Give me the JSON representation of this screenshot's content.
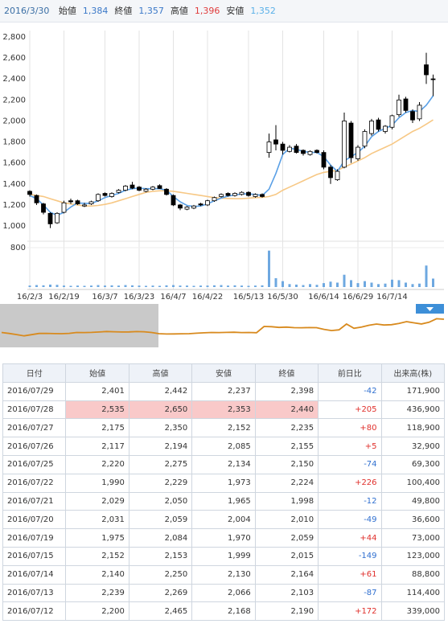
{
  "header": {
    "date": "2016/3/30",
    "items": [
      {
        "label": "始値",
        "value": "1,384",
        "color": "#3a78c8"
      },
      {
        "label": "終値",
        "value": "1,357",
        "color": "#3a78c8"
      },
      {
        "label": "高値",
        "value": "1,396",
        "color": "#e03c3c"
      },
      {
        "label": "安値",
        "value": "1,352",
        "color": "#5ab0e8"
      }
    ]
  },
  "chart_data": {
    "type": "candlestick",
    "categories": [
      "16/2/3",
      null,
      null,
      null,
      null,
      "16/2/19",
      null,
      null,
      null,
      null,
      null,
      "16/3/7",
      null,
      null,
      null,
      null,
      "16/3/23",
      null,
      null,
      null,
      null,
      "16/4/7",
      null,
      null,
      null,
      null,
      "16/4/22",
      null,
      null,
      null,
      null,
      null,
      "16/5/13",
      null,
      null,
      null,
      null,
      "16/5/30",
      null,
      null,
      null,
      null,
      null,
      "16/6/14",
      null,
      null,
      null,
      null,
      "16/6/29",
      null,
      null,
      null,
      null,
      "16/7/14",
      null,
      null,
      null,
      null,
      null,
      null
    ],
    "open": [
      1330,
      1290,
      1210,
      1120,
      1030,
      1130,
      1240,
      1240,
      1190,
      1210,
      1240,
      1310,
      1280,
      1320,
      1340,
      1390,
      1370,
      1330,
      1350,
      1384,
      1350,
      1290,
      1200,
      1160,
      1170,
      1210,
      1200,
      1240,
      1280,
      1310,
      1290,
      1300,
      1320,
      1280,
      1300,
      1700,
      1820,
      1780,
      1710,
      1760,
      1720,
      1680,
      1720,
      1700,
      1560,
      1440,
      1560,
      1980,
      1640,
      1760,
      1880,
      2010,
      1900,
      1940,
      2060,
      2210,
      2090,
      2020,
      2535,
      2401
    ],
    "high": [
      1340,
      1300,
      1220,
      1130,
      1130,
      1240,
      1260,
      1250,
      1220,
      1240,
      1310,
      1320,
      1320,
      1350,
      1390,
      1420,
      1380,
      1360,
      1380,
      1396,
      1360,
      1300,
      1210,
      1190,
      1200,
      1220,
      1250,
      1280,
      1310,
      1320,
      1320,
      1330,
      1330,
      1310,
      1310,
      1880,
      1960,
      1800,
      1770,
      1780,
      1730,
      1720,
      1730,
      1720,
      1580,
      1540,
      2080,
      2000,
      1770,
      1920,
      2020,
      2030,
      1960,
      2060,
      2250,
      2230,
      2110,
      2180,
      2650,
      2442
    ],
    "low": [
      1280,
      1200,
      1110,
      980,
      1020,
      1120,
      1210,
      1200,
      1180,
      1200,
      1230,
      1280,
      1270,
      1310,
      1330,
      1350,
      1330,
      1320,
      1340,
      1352,
      1290,
      1190,
      1150,
      1150,
      1160,
      1190,
      1190,
      1230,
      1270,
      1280,
      1280,
      1290,
      1280,
      1270,
      1270,
      1650,
      1720,
      1680,
      1700,
      1690,
      1670,
      1670,
      1690,
      1540,
      1400,
      1430,
      1550,
      1600,
      1620,
      1740,
      1860,
      1900,
      1880,
      1920,
      2040,
      2080,
      1980,
      2000,
      2353,
      2237
    ],
    "close": [
      1300,
      1220,
      1130,
      1020,
      1120,
      1220,
      1230,
      1210,
      1200,
      1230,
      1300,
      1290,
      1310,
      1340,
      1380,
      1360,
      1340,
      1350,
      1370,
      1357,
      1300,
      1200,
      1170,
      1180,
      1190,
      1200,
      1240,
      1270,
      1300,
      1290,
      1310,
      1320,
      1290,
      1300,
      1280,
      1800,
      1780,
      1720,
      1750,
      1700,
      1690,
      1710,
      1700,
      1560,
      1460,
      1520,
      2000,
      1650,
      1750,
      1900,
      2000,
      1920,
      1950,
      2050,
      2200,
      2100,
      2010,
      2150,
      2440,
      2398
    ],
    "series": [
      {
        "color": "#5aa0e6",
        "values": [
          1290,
          1260,
          1200,
          1130,
          1100,
          1130,
          1180,
          1220,
          1215,
          1215,
          1240,
          1270,
          1290,
          1310,
          1340,
          1355,
          1360,
          1355,
          1355,
          1355,
          1340,
          1280,
          1230,
          1195,
          1185,
          1190,
          1210,
          1240,
          1265,
          1285,
          1295,
          1305,
          1305,
          1300,
          1290,
          1350,
          1500,
          1680,
          1740,
          1730,
          1710,
          1700,
          1700,
          1660,
          1580,
          1520,
          1620,
          1660,
          1700,
          1760,
          1850,
          1900,
          1930,
          1960,
          2030,
          2080,
          2100,
          2090,
          2150,
          2240
        ]
      },
      {
        "color": "#f7c885",
        "values": [
          1300,
          1290,
          1280,
          1260,
          1240,
          1220,
          1210,
          1200,
          1190,
          1190,
          1195,
          1205,
          1220,
          1240,
          1260,
          1280,
          1300,
          1320,
          1330,
          1335,
          1335,
          1330,
          1320,
          1310,
          1300,
          1290,
          1280,
          1270,
          1265,
          1262,
          1260,
          1260,
          1265,
          1270,
          1272,
          1280,
          1300,
          1340,
          1370,
          1400,
          1430,
          1460,
          1490,
          1510,
          1520,
          1530,
          1560,
          1590,
          1620,
          1650,
          1690,
          1720,
          1750,
          1780,
          1820,
          1860,
          1900,
          1930,
          1970,
          2010
        ]
      }
    ],
    "up_color": "#ffffff",
    "down_color": "#000000",
    "ylim": [
      1000,
      2800
    ],
    "yticks": [
      {
        "value": 1000,
        "label": "1,000"
      },
      {
        "value": 1200,
        "label": "1,200"
      },
      {
        "value": 1400,
        "label": "1,400"
      },
      {
        "value": 1600,
        "label": "1,600"
      },
      {
        "value": 1800,
        "label": "1,800"
      },
      {
        "value": 2000,
        "label": "2,000"
      },
      {
        "value": 2200,
        "label": "2,200"
      },
      {
        "value": 2400,
        "label": "2,400"
      },
      {
        "value": 2600,
        "label": "2,600"
      },
      {
        "value": 2800,
        "label": "2,800"
      }
    ],
    "grid": "x",
    "volume": {
      "color": "#6ea8e0",
      "ylim": [
        0,
        800
      ],
      "yticks": [
        800
      ],
      "values": [
        30,
        40,
        35,
        50,
        45,
        30,
        25,
        30,
        25,
        30,
        40,
        30,
        35,
        30,
        40,
        35,
        30,
        25,
        30,
        25,
        35,
        40,
        30,
        30,
        25,
        30,
        30,
        35,
        40,
        30,
        35,
        30,
        25,
        30,
        35,
        740,
        180,
        120,
        60,
        50,
        40,
        60,
        45,
        80,
        110,
        90,
        250,
        140,
        80,
        120,
        90,
        60,
        70,
        150,
        140,
        90,
        60,
        70,
        437,
        172
      ]
    },
    "navigator_color": "#d88a1e"
  },
  "table": {
    "columns": [
      "日付",
      "始値",
      "高値",
      "安値",
      "終値",
      "前日比",
      "出来高(株)"
    ],
    "highlighted_row": 1,
    "rows": [
      [
        "2016/07/29",
        "2,401",
        "2,442",
        "2,237",
        "2,398",
        "-42",
        "171,900"
      ],
      [
        "2016/07/28",
        "2,535",
        "2,650",
        "2,353",
        "2,440",
        "+205",
        "436,900"
      ],
      [
        "2016/07/27",
        "2,175",
        "2,350",
        "2,152",
        "2,235",
        "+80",
        "118,900"
      ],
      [
        "2016/07/26",
        "2,117",
        "2,194",
        "2,085",
        "2,155",
        "+5",
        "32,900"
      ],
      [
        "2016/07/25",
        "2,220",
        "2,275",
        "2,134",
        "2,150",
        "-74",
        "69,300"
      ],
      [
        "2016/07/22",
        "1,990",
        "2,229",
        "1,973",
        "2,224",
        "+226",
        "100,400"
      ],
      [
        "2016/07/21",
        "2,029",
        "2,050",
        "1,965",
        "1,998",
        "-12",
        "49,800"
      ],
      [
        "2016/07/20",
        "2,031",
        "2,059",
        "2,004",
        "2,010",
        "-49",
        "36,600"
      ],
      [
        "2016/07/19",
        "1,975",
        "2,084",
        "1,970",
        "2,059",
        "+44",
        "73,000"
      ],
      [
        "2016/07/15",
        "2,152",
        "2,153",
        "1,999",
        "2,015",
        "-149",
        "123,000"
      ],
      [
        "2016/07/14",
        "2,140",
        "2,250",
        "2,130",
        "2,164",
        "+61",
        "88,800"
      ],
      [
        "2016/07/13",
        "2,239",
        "2,269",
        "2,066",
        "2,103",
        "-87",
        "114,400"
      ],
      [
        "2016/07/12",
        "2,200",
        "2,465",
        "2,168",
        "2,190",
        "+172",
        "339,000"
      ]
    ]
  }
}
